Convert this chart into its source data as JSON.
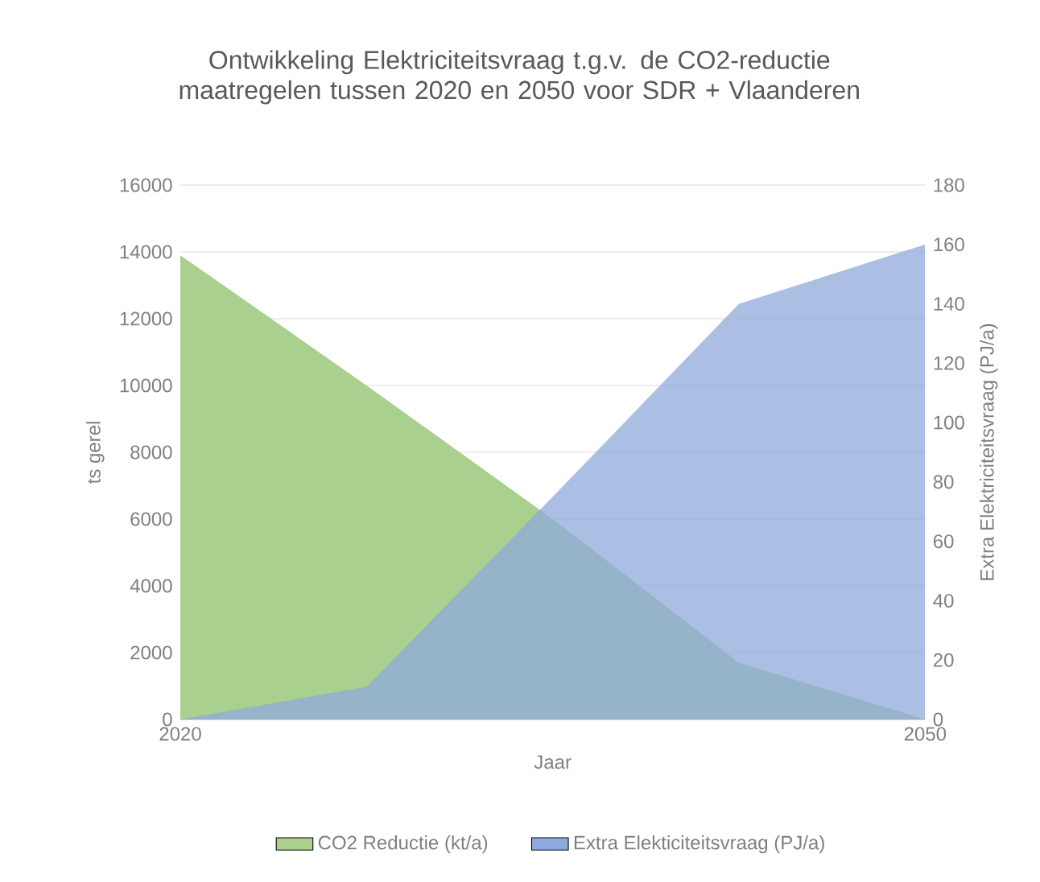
{
  "chart_data": {
    "type": "area",
    "title": "Ontwikkeling Elektriciteitsvraag t.g.v. de CO2-reductie maatregelen tussen 2020 en 2050 voor SDR + Vlaanderen",
    "xlabel": "Jaar",
    "ylabel": "ts gerel",
    "y2label": "Extra Elektriciteitsvraag (PJ/a)",
    "categories": [
      "2020",
      null,
      null,
      null,
      "2050"
    ],
    "series": [
      {
        "name": "CO2 Reductie (kt/a)",
        "color": "#a9d08e",
        "values": [
          13900,
          10000,
          6000,
          1700,
          0
        ]
      },
      {
        "name": "Extra Elekticiteitsvraag (PJ/a)",
        "color": "#8faadc",
        "values": [
          0,
          11,
          75,
          140,
          160
        ],
        "axis": "y2"
      }
    ],
    "ylim": [
      0,
      16000
    ],
    "yticks": [
      0,
      2000,
      4000,
      6000,
      8000,
      10000,
      12000,
      14000,
      16000
    ],
    "y2lim": [
      0,
      180
    ],
    "y2ticks": [
      0,
      20,
      40,
      60,
      80,
      100,
      120,
      140,
      160,
      180
    ],
    "grid": "y",
    "legend": "bottom"
  }
}
